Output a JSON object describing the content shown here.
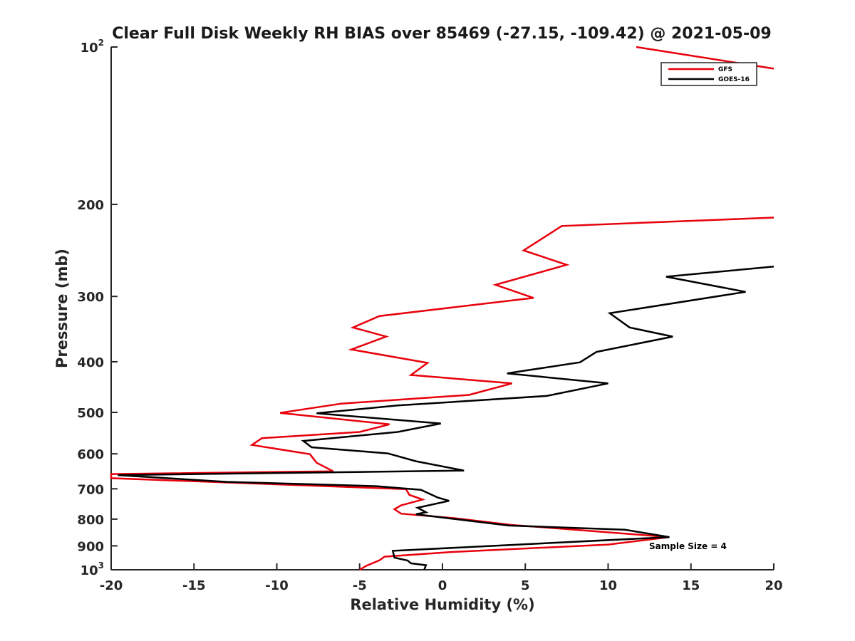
{
  "chart_data": {
    "type": "line",
    "title": "Clear Full Disk Weekly RH BIAS over 85469 (-27.15, -109.42) @ 2021-05-09",
    "xlabel": "Relative Humidity (%)",
    "ylabel": "Pressure (mb)",
    "xlim": [
      -20,
      20
    ],
    "ylim": [
      100,
      1000
    ],
    "y_scale": "log",
    "y_reversed": true,
    "x_ticks": [
      -20,
      -15,
      -10,
      -5,
      0,
      5,
      10,
      15,
      20
    ],
    "x_tick_labels": [
      "-20",
      "-15",
      "-10",
      "-5",
      "0",
      "5",
      "10",
      "15",
      "20"
    ],
    "y_ticks": [
      100,
      200,
      300,
      400,
      500,
      600,
      700,
      800,
      900,
      1000
    ],
    "y_tick_labels": [
      {
        "base": "10",
        "exp": "2"
      },
      {
        "base": "200",
        "exp": ""
      },
      {
        "base": "300",
        "exp": ""
      },
      {
        "base": "400",
        "exp": ""
      },
      {
        "base": "500",
        "exp": ""
      },
      {
        "base": "600",
        "exp": ""
      },
      {
        "base": "700",
        "exp": ""
      },
      {
        "base": "800",
        "exp": ""
      },
      {
        "base": "900",
        "exp": ""
      },
      {
        "base": "10",
        "exp": "3"
      }
    ],
    "grid": false,
    "legend_position": "top-right",
    "annotation": "Sample Size = 4",
    "series": [
      {
        "name": "GFS",
        "color": "#e8000b",
        "points": [
          [
            -5.0,
            1000
          ],
          [
            -4.6,
            983
          ],
          [
            -3.8,
            959
          ],
          [
            -3.5,
            944
          ],
          [
            0.5,
            925
          ],
          [
            10.0,
            895
          ],
          [
            13.7,
            866
          ],
          [
            8.0,
            838
          ],
          [
            4.2,
            821
          ],
          [
            0.8,
            797
          ],
          [
            -2.5,
            781
          ],
          [
            -2.9,
            766
          ],
          [
            -2.5,
            753
          ],
          [
            -1.2,
            734
          ],
          [
            -2.0,
            719
          ],
          [
            -2.2,
            701
          ],
          [
            -20.0,
            668
          ],
          [
            -20.0,
            656
          ],
          [
            -6.6,
            648
          ],
          [
            -7.6,
            624
          ],
          [
            -8.0,
            601
          ],
          [
            -11.5,
            577
          ],
          [
            -10.9,
            560
          ],
          [
            -5.0,
            545
          ],
          [
            -3.2,
            527
          ],
          [
            -9.8,
            501
          ],
          [
            -6.1,
            481
          ],
          [
            1.6,
            463
          ],
          [
            4.2,
            440
          ],
          [
            -1.9,
            424
          ],
          [
            -0.9,
            402
          ],
          [
            -5.5,
            379
          ],
          [
            -3.4,
            358
          ],
          [
            -5.4,
            344
          ],
          [
            -3.8,
            327
          ],
          [
            5.5,
            302
          ],
          [
            3.2,
            285
          ],
          [
            7.5,
            261
          ],
          [
            4.9,
            245
          ],
          [
            7.2,
            220
          ],
          [
            20.0,
            212
          ]
        ]
      },
      {
        "name": "GFS",
        "color": "#e8000b",
        "points": [
          [
            11.7,
            100
          ],
          [
            20.0,
            110
          ]
        ]
      },
      {
        "name": "GOES-16",
        "color": "#000000",
        "points": [
          [
            -1.1,
            1000
          ],
          [
            -1.0,
            980
          ],
          [
            -1.9,
            972
          ],
          [
            -2.1,
            960
          ],
          [
            -2.9,
            948
          ],
          [
            -3.0,
            920
          ],
          [
            13.7,
            866
          ],
          [
            11.0,
            838
          ],
          [
            4.0,
            823
          ],
          [
            0.8,
            800
          ],
          [
            -1.6,
            783
          ],
          [
            -1.0,
            776
          ],
          [
            -1.5,
            761
          ],
          [
            0.4,
            738
          ],
          [
            -0.3,
            727
          ],
          [
            -1.3,
            703
          ],
          [
            -4.0,
            692
          ],
          [
            -13.0,
            679
          ],
          [
            -19.6,
            659
          ],
          [
            1.3,
            646
          ],
          [
            -1.6,
            620
          ],
          [
            -3.3,
            599
          ],
          [
            -7.9,
            583
          ],
          [
            -8.4,
            567
          ],
          [
            -2.7,
            545
          ],
          [
            -0.1,
            525
          ],
          [
            -7.6,
            502
          ],
          [
            -2.7,
            485
          ],
          [
            6.3,
            465
          ],
          [
            10.0,
            440
          ],
          [
            3.9,
            421
          ],
          [
            8.3,
            401
          ],
          [
            9.3,
            383
          ],
          [
            13.9,
            358
          ],
          [
            11.3,
            344
          ],
          [
            10.1,
            323
          ],
          [
            18.3,
            294
          ],
          [
            13.5,
            275
          ],
          [
            20.0,
            263
          ]
        ]
      }
    ]
  },
  "legend": {
    "entries": [
      {
        "label": "GFS",
        "color": "#e8000b"
      },
      {
        "label": "GOES-16",
        "color": "#000000"
      }
    ]
  }
}
